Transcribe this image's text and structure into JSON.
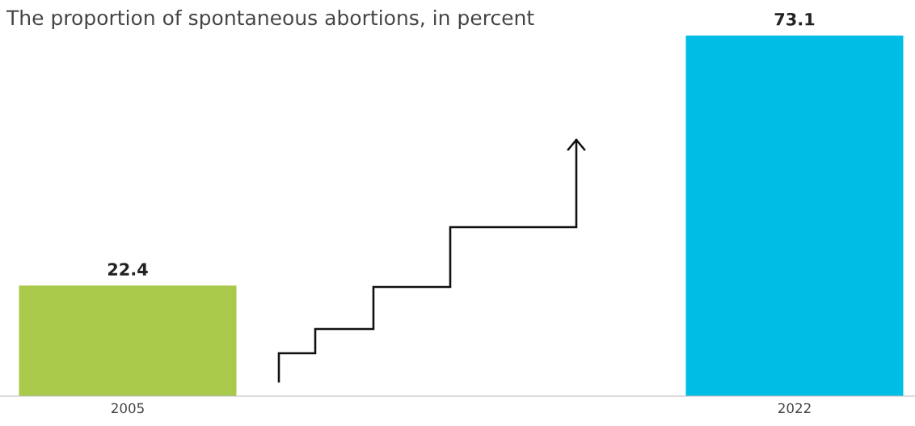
{
  "chart_data": {
    "type": "bar",
    "title": "The proportion of spontaneous abortions, in percent",
    "categories": [
      "2005",
      "2022"
    ],
    "values": [
      22.4,
      73.1
    ],
    "colors": [
      "#a9c94a",
      "#00bde6"
    ],
    "data_labels": true,
    "tick_labels": "x",
    "grid": false,
    "legend": false
  }
}
